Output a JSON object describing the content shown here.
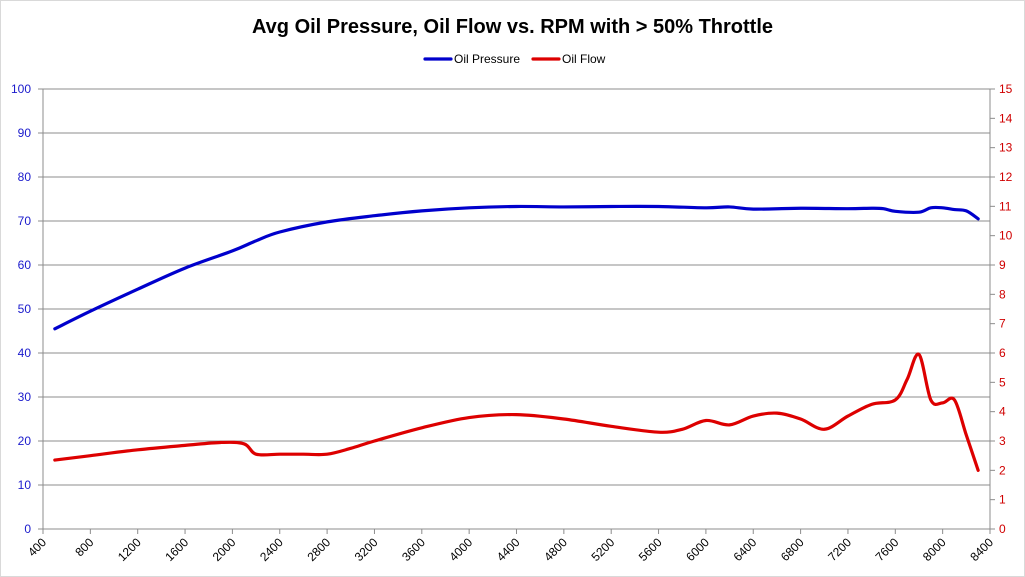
{
  "chart_data": {
    "type": "line",
    "title": "Avg Oil Pressure, Oil Flow vs. RPM with > 50% Throttle",
    "xlabel": "",
    "ylabel": "",
    "y2label": "",
    "xlim": [
      400,
      8400
    ],
    "ylim": [
      0,
      100
    ],
    "y2lim": [
      0,
      15
    ],
    "x_ticks": [
      "400",
      "800",
      "1200",
      "1600",
      "2000",
      "2400",
      "2800",
      "3200",
      "3600",
      "4000",
      "4400",
      "4800",
      "5200",
      "5600",
      "6000",
      "6400",
      "6800",
      "7200",
      "7600",
      "8000",
      "8400"
    ],
    "y_ticks": [
      "0",
      "10",
      "20",
      "30",
      "40",
      "50",
      "60",
      "70",
      "80",
      "90",
      "100"
    ],
    "y2_ticks": [
      "0",
      "1",
      "2",
      "3",
      "4",
      "5",
      "6",
      "7",
      "8",
      "9",
      "10",
      "11",
      "12",
      "13",
      "14",
      "15"
    ],
    "grid": "horizontal",
    "legend_position": "top",
    "series": [
      {
        "name": "Oil Pressure",
        "axis": "left",
        "color": "#0000cc",
        "x": [
          500,
          800,
          1200,
          1600,
          2000,
          2200,
          2400,
          2800,
          3200,
          3600,
          4000,
          4400,
          4800,
          5200,
          5600,
          6000,
          6200,
          6400,
          6800,
          7200,
          7400,
          7500,
          7600,
          7800,
          7900,
          8000,
          8100,
          8200,
          8300
        ],
        "y": [
          45.5,
          49.5,
          54.5,
          59.3,
          63.2,
          65.5,
          67.5,
          69.8,
          71.2,
          72.3,
          73.0,
          73.3,
          73.2,
          73.3,
          73.3,
          73.0,
          73.2,
          72.7,
          72.9,
          72.8,
          72.9,
          72.8,
          72.2,
          72.0,
          73.0,
          73.0,
          72.6,
          72.3,
          70.5
        ]
      },
      {
        "name": "Oil Flow",
        "axis": "right",
        "color": "#dd0000",
        "x": [
          500,
          800,
          1200,
          1600,
          1900,
          2100,
          2200,
          2400,
          2600,
          2800,
          3000,
          3200,
          3600,
          4000,
          4400,
          4800,
          5200,
          5600,
          5800,
          6000,
          6200,
          6400,
          6600,
          6800,
          7000,
          7200,
          7400,
          7600,
          7700,
          7800,
          7900,
          8000,
          8100,
          8200,
          8300
        ],
        "y": [
          2.35,
          2.5,
          2.7,
          2.85,
          2.95,
          2.9,
          2.55,
          2.55,
          2.55,
          2.55,
          2.75,
          3.0,
          3.45,
          3.8,
          3.9,
          3.75,
          3.5,
          3.3,
          3.4,
          3.7,
          3.55,
          3.85,
          3.95,
          3.75,
          3.4,
          3.85,
          4.25,
          4.4,
          5.1,
          5.95,
          4.4,
          4.3,
          4.4,
          3.2,
          2.0
        ]
      }
    ]
  }
}
